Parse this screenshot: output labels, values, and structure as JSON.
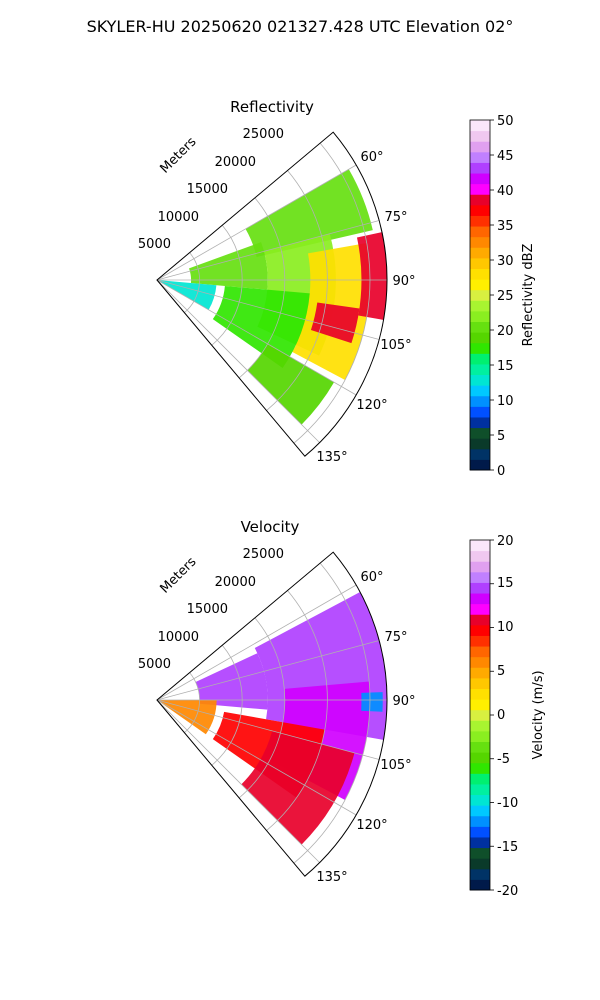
{
  "figure": {
    "title": "SKYLER-HU  20250620  021327.428 UTC Elevation 02°"
  },
  "panels": [
    {
      "title": "Reflectivity",
      "range_axis_label": "Meters",
      "range_ticks": [
        "5000",
        "10000",
        "15000",
        "20000",
        "25000"
      ],
      "azimuth_ticks": [
        "60°",
        "75°",
        "90°",
        "105°",
        "120°",
        "135°"
      ],
      "colorbar": {
        "label": "Reflectivity dBZ",
        "ticks": [
          "0",
          "5",
          "10",
          "15",
          "20",
          "25",
          "30",
          "35",
          "40",
          "45",
          "50"
        ],
        "colors": [
          "#001a4a",
          "#003366",
          "#0a3a2a",
          "#0f4f2a",
          "#0030a0",
          "#0050ff",
          "#0090ff",
          "#00c8ff",
          "#00e6d2",
          "#00f0a0",
          "#00f070",
          "#30e600",
          "#55d600",
          "#66e010",
          "#8aee20",
          "#a8f430",
          "#d8f040",
          "#fff000",
          "#ffe000",
          "#ffc800",
          "#ffaa00",
          "#ff8800",
          "#ff6600",
          "#ff3000",
          "#ff0000",
          "#e8002a",
          "#ff00ff",
          "#d000ff",
          "#b040ff",
          "#c080ff",
          "#e0a0f0",
          "#f0c8f0",
          "#fbe6fb"
        ]
      }
    },
    {
      "title": "Velocity",
      "range_axis_label": "Meters",
      "range_ticks": [
        "5000",
        "10000",
        "15000",
        "20000",
        "25000"
      ],
      "azimuth_ticks": [
        "60°",
        "75°",
        "90°",
        "105°",
        "120°",
        "135°"
      ],
      "colorbar": {
        "label": "Velocity (m/s)",
        "ticks": [
          "-20",
          "-15",
          "-10",
          "-5",
          "0",
          "5",
          "10",
          "15",
          "20"
        ],
        "colors": [
          "#001a4a",
          "#003366",
          "#0a3a2a",
          "#0f4f2a",
          "#0030a0",
          "#0050ff",
          "#0090ff",
          "#00c8ff",
          "#00e6d2",
          "#00f0a0",
          "#00f070",
          "#30e600",
          "#55d600",
          "#66e010",
          "#8aee20",
          "#a8f430",
          "#d8f040",
          "#fff000",
          "#ffe000",
          "#ffc800",
          "#ffaa00",
          "#ff8800",
          "#ff6600",
          "#ff3000",
          "#ff0000",
          "#e8002a",
          "#ff00ff",
          "#d000ff",
          "#b040ff",
          "#c080ff",
          "#e0a0f0",
          "#f0c8f0",
          "#fbe6fb"
        ]
      }
    }
  ],
  "chart_data": [
    {
      "type": "heatmap",
      "title": "Reflectivity",
      "projection": "polar",
      "azimuth_range_deg": [
        50,
        140
      ],
      "range_max_m": 27000,
      "range_ticks_m": [
        5000,
        10000,
        15000,
        20000,
        25000
      ],
      "azimuth_ticks_deg": [
        60,
        75,
        90,
        105,
        120,
        135
      ],
      "colorbar_range": [
        0,
        50
      ],
      "colorbar_unit": "dBZ",
      "grid": true,
      "echo_regions": [
        {
          "az": [
            60,
            77
          ],
          "r_m": [
            12000,
            26000
          ],
          "value": 20
        },
        {
          "az": [
            70,
            95
          ],
          "r_m": [
            4000,
            13000
          ],
          "value": 20
        },
        {
          "az": [
            75,
            115
          ],
          "r_m": [
            13000,
            21000
          ],
          "value": 22
        },
        {
          "az": [
            80,
            118
          ],
          "r_m": [
            18000,
            25000
          ],
          "value": 28
        },
        {
          "az": [
            78,
            100
          ],
          "r_m": [
            24000,
            27000
          ],
          "value": 38
        },
        {
          "az": [
            95,
            125
          ],
          "r_m": [
            8000,
            18000
          ],
          "value": 18
        },
        {
          "az": [
            95,
            120
          ],
          "r_m": [
            0,
            7000
          ],
          "value": 13
        },
        {
          "az": [
            120,
            135
          ],
          "r_m": [
            15000,
            24000
          ],
          "value": 19
        },
        {
          "az": [
            98,
            108
          ],
          "r_m": [
            19000,
            24000
          ],
          "value": 38
        }
      ]
    },
    {
      "type": "heatmap",
      "title": "Velocity",
      "projection": "polar",
      "azimuth_range_deg": [
        50,
        140
      ],
      "range_max_m": 27000,
      "range_ticks_m": [
        5000,
        10000,
        15000,
        20000,
        25000
      ],
      "azimuth_ticks_deg": [
        60,
        75,
        90,
        105,
        120,
        135
      ],
      "colorbar_range": [
        -20,
        20
      ],
      "colorbar_unit": "m/s",
      "grid": true,
      "echo_regions": [
        {
          "az": [
            65,
            95
          ],
          "r_m": [
            5000,
            13000
          ],
          "value": 15
        },
        {
          "az": [
            62,
            100
          ],
          "r_m": [
            13000,
            27000
          ],
          "value": 15
        },
        {
          "az": [
            85,
            118
          ],
          "r_m": [
            15000,
            25000
          ],
          "value": 13
        },
        {
          "az": [
            100,
            125
          ],
          "r_m": [
            8000,
            20000
          ],
          "value": 10
        },
        {
          "az": [
            105,
            135
          ],
          "r_m": [
            14000,
            24000
          ],
          "value": 11
        },
        {
          "az": [
            90,
            125
          ],
          "r_m": [
            0,
            7000
          ],
          "value": 6
        },
        {
          "az": [
            88,
            93
          ],
          "r_m": [
            24000,
            26500
          ],
          "value": -12
        }
      ]
    }
  ]
}
